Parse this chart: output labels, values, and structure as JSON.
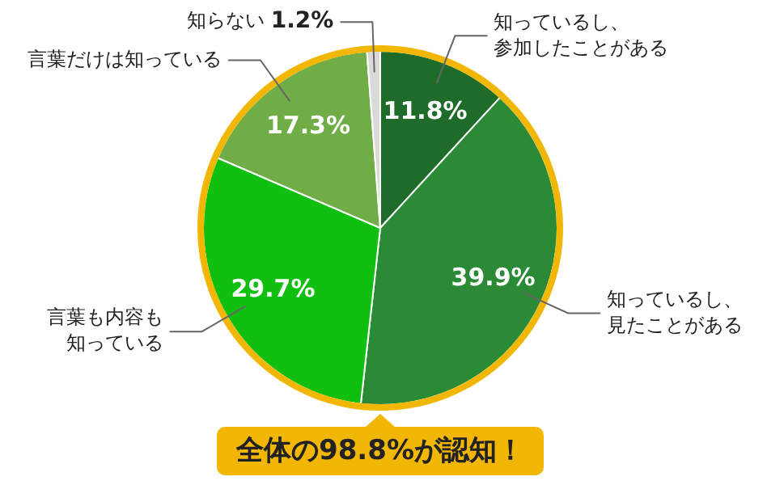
{
  "chart_data": {
    "type": "pie",
    "categories": [
      "知っているし、参加したことがある",
      "知っているし、見たことがある",
      "言葉も内容も知っている",
      "言葉だけは知っている",
      "知らない"
    ],
    "values": [
      11.8,
      39.9,
      29.7,
      17.3,
      1.2
    ],
    "colors": [
      "#1e6b2a",
      "#2a8a36",
      "#10bf10",
      "#70ad47",
      "#d9d9d9"
    ],
    "value_labels": [
      "11.8%",
      "39.9%",
      "29.7%",
      "17.3%",
      "1.2%"
    ],
    "annotations": [
      "全体の98.8%が認知！"
    ]
  }
}
